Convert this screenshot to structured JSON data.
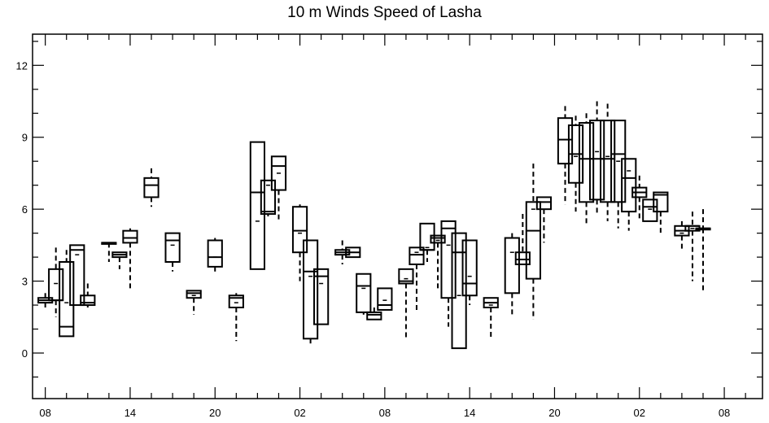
{
  "chart_data": {
    "type": "box",
    "title": "10 m Winds Speed of Lasha",
    "xlabel": "",
    "ylabel": "",
    "ylim": [
      -1.9,
      13.3
    ],
    "xlim": [
      -0.6,
      33.8
    ],
    "grid": false,
    "yticks": [
      0,
      3,
      6,
      9,
      12
    ],
    "xtick_positions": [
      0,
      4,
      8,
      12,
      16,
      20,
      24,
      28,
      32
    ],
    "xtick_labels": [
      "08",
      "14",
      "20",
      "02",
      "08",
      "14",
      "20",
      "02",
      "08"
    ],
    "boxes": [
      {
        "x": 0.0,
        "min": 1.9,
        "q1": 2.1,
        "median": 2.2,
        "q3": 2.3,
        "max": 2.5,
        "mean": 2.2
      },
      {
        "x": 0.5,
        "min": 1.5,
        "q1": 2.2,
        "median": 2.2,
        "q3": 3.5,
        "max": 4.4,
        "mean": 2.9
      },
      {
        "x": 1.0,
        "min": 0.7,
        "q1": 0.7,
        "median": 1.1,
        "q3": 3.8,
        "max": 4.3,
        "mean": 2.1
      },
      {
        "x": 1.5,
        "min": 2.0,
        "q1": 2.0,
        "median": 4.3,
        "q3": 4.5,
        "max": 4.5,
        "mean": 4.1
      },
      {
        "x": 2.0,
        "min": 1.9,
        "q1": 2.0,
        "median": 2.1,
        "q3": 2.4,
        "max": 2.9,
        "mean": 2.1
      },
      {
        "x": 3.0,
        "min": 3.8,
        "q1": 4.6,
        "median": 4.6,
        "q3": 4.6,
        "max": 4.6,
        "mean": 4.6
      },
      {
        "x": 3.5,
        "min": 3.5,
        "q1": 4.0,
        "median": 4.1,
        "q3": 4.2,
        "max": 4.2,
        "mean": 4.1
      },
      {
        "x": 4.0,
        "min": 2.7,
        "q1": 4.6,
        "median": 4.8,
        "q3": 5.1,
        "max": 5.2,
        "mean": 4.8
      },
      {
        "x": 5.0,
        "min": 6.1,
        "q1": 6.5,
        "median": 7.0,
        "q3": 7.3,
        "max": 7.7,
        "mean": 7.0
      },
      {
        "x": 6.0,
        "min": 3.4,
        "q1": 3.8,
        "median": 4.7,
        "q3": 5.0,
        "max": 5.0,
        "mean": 4.5
      },
      {
        "x": 7.0,
        "min": 1.6,
        "q1": 2.3,
        "median": 2.5,
        "q3": 2.6,
        "max": 2.6,
        "mean": 2.4
      },
      {
        "x": 8.0,
        "min": 3.4,
        "q1": 3.6,
        "median": 4.0,
        "q3": 4.7,
        "max": 4.8,
        "mean": 4.0
      },
      {
        "x": 9.0,
        "min": 0.5,
        "q1": 1.9,
        "median": 2.3,
        "q3": 2.4,
        "max": 2.5,
        "mean": 2.1
      },
      {
        "x": 10.0,
        "min": 3.5,
        "q1": 3.5,
        "median": 6.7,
        "q3": 8.8,
        "max": 8.8,
        "mean": 5.5
      },
      {
        "x": 10.5,
        "min": 5.7,
        "q1": 5.8,
        "median": 5.9,
        "q3": 7.2,
        "max": 7.2,
        "mean": 7.0
      },
      {
        "x": 11.0,
        "min": 5.5,
        "q1": 6.8,
        "median": 7.8,
        "q3": 8.2,
        "max": 8.2,
        "mean": 7.5
      },
      {
        "x": 12.0,
        "min": 3.0,
        "q1": 4.2,
        "median": 5.1,
        "q3": 6.1,
        "max": 6.2,
        "mean": 5.0
      },
      {
        "x": 12.5,
        "min": 0.4,
        "q1": 0.6,
        "median": 3.4,
        "q3": 4.7,
        "max": 4.7,
        "mean": 3.2
      },
      {
        "x": 13.0,
        "min": 1.2,
        "q1": 1.2,
        "median": 3.2,
        "q3": 3.5,
        "max": 3.5,
        "mean": 2.9
      },
      {
        "x": 14.0,
        "min": 3.7,
        "q1": 4.1,
        "median": 4.2,
        "q3": 4.3,
        "max": 4.7,
        "mean": 4.2
      },
      {
        "x": 14.5,
        "min": 4.0,
        "q1": 4.0,
        "median": 4.2,
        "q3": 4.4,
        "max": 4.4,
        "mean": 4.2
      },
      {
        "x": 15.0,
        "min": 1.6,
        "q1": 1.7,
        "median": 2.8,
        "q3": 3.3,
        "max": 3.3,
        "mean": 2.7
      },
      {
        "x": 15.5,
        "min": 1.4,
        "q1": 1.4,
        "median": 1.6,
        "q3": 1.7,
        "max": 1.9,
        "mean": 1.6
      },
      {
        "x": 16.0,
        "min": 1.8,
        "q1": 1.8,
        "median": 2.0,
        "q3": 2.7,
        "max": 2.7,
        "mean": 2.2
      },
      {
        "x": 17.0,
        "min": 0.6,
        "q1": 2.9,
        "median": 3.0,
        "q3": 3.5,
        "max": 3.5,
        "mean": 3.1
      },
      {
        "x": 17.5,
        "min": 1.7,
        "q1": 3.7,
        "median": 4.1,
        "q3": 4.4,
        "max": 4.4,
        "mean": 4.2
      },
      {
        "x": 18.0,
        "min": 3.8,
        "q1": 4.3,
        "median": 4.3,
        "q3": 5.4,
        "max": 5.4,
        "mean": 4.4
      },
      {
        "x": 18.5,
        "min": 2.6,
        "q1": 4.6,
        "median": 4.8,
        "q3": 4.9,
        "max": 4.9,
        "mean": 4.7
      },
      {
        "x": 19.0,
        "min": 1.1,
        "q1": 2.3,
        "median": 5.2,
        "q3": 5.5,
        "max": 5.5,
        "mean": 4.5
      },
      {
        "x": 19.5,
        "min": 0.2,
        "q1": 0.2,
        "median": 4.2,
        "q3": 5.0,
        "max": 5.0,
        "mean": 2.4
      },
      {
        "x": 20.0,
        "min": 2.0,
        "q1": 2.4,
        "median": 2.9,
        "q3": 4.7,
        "max": 4.7,
        "mean": 3.2
      },
      {
        "x": 21.0,
        "min": 0.6,
        "q1": 1.9,
        "median": 2.1,
        "q3": 2.3,
        "max": 2.3,
        "mean": 2.0
      },
      {
        "x": 22.0,
        "min": 1.6,
        "q1": 2.5,
        "median": 4.8,
        "q3": 4.8,
        "max": 5.0,
        "mean": 4.2
      },
      {
        "x": 22.5,
        "min": 3.7,
        "q1": 3.7,
        "median": 3.9,
        "q3": 4.2,
        "max": 5.8,
        "mean": 3.9
      },
      {
        "x": 23.0,
        "min": 1.4,
        "q1": 3.1,
        "median": 5.1,
        "q3": 6.3,
        "max": 7.9,
        "mean": 6.0
      },
      {
        "x": 23.5,
        "min": 4.6,
        "q1": 6.0,
        "median": 6.3,
        "q3": 6.5,
        "max": 6.5,
        "mean": 6.3
      },
      {
        "x": 24.5,
        "min": 6.2,
        "q1": 7.9,
        "median": 8.9,
        "q3": 9.8,
        "max": 10.3,
        "mean": 8.9
      },
      {
        "x": 25.0,
        "min": 5.9,
        "q1": 7.1,
        "median": 8.3,
        "q3": 9.5,
        "max": 9.9,
        "mean": 8.2
      },
      {
        "x": 25.5,
        "min": 5.3,
        "q1": 6.3,
        "median": 8.1,
        "q3": 9.6,
        "max": 10.0,
        "mean": 8.1
      },
      {
        "x": 26.0,
        "min": 5.8,
        "q1": 6.4,
        "median": 8.1,
        "q3": 9.7,
        "max": 10.5,
        "mean": 8.4
      },
      {
        "x": 26.5,
        "min": 5.5,
        "q1": 6.3,
        "median": 8.1,
        "q3": 9.7,
        "max": 10.4,
        "mean": 8.2
      },
      {
        "x": 27.0,
        "min": 5.2,
        "q1": 6.3,
        "median": 8.3,
        "q3": 9.7,
        "max": 9.7,
        "mean": 8.0
      },
      {
        "x": 27.5,
        "min": 5.1,
        "q1": 5.9,
        "median": 7.3,
        "q3": 8.1,
        "max": 8.1,
        "mean": 7.6
      },
      {
        "x": 28.0,
        "min": 5.5,
        "q1": 6.5,
        "median": 6.7,
        "q3": 6.9,
        "max": 7.4,
        "mean": 6.7
      },
      {
        "x": 28.5,
        "min": 5.5,
        "q1": 5.5,
        "median": 6.1,
        "q3": 6.4,
        "max": 6.4,
        "mean": 6.0
      },
      {
        "x": 29.0,
        "min": 4.9,
        "q1": 5.9,
        "median": 6.6,
        "q3": 6.7,
        "max": 6.7,
        "mean": 6.6
      },
      {
        "x": 30.0,
        "min": 4.3,
        "q1": 4.9,
        "median": 5.1,
        "q3": 5.3,
        "max": 5.5,
        "mean": 5.0
      },
      {
        "x": 30.5,
        "min": 3.0,
        "q1": 5.1,
        "median": 5.3,
        "q3": 5.3,
        "max": 5.9,
        "mean": 5.2
      },
      {
        "x": 31.0,
        "min": 2.6,
        "q1": 5.2,
        "median": 5.2,
        "q3": 5.2,
        "max": 6.0,
        "mean": 5.2
      }
    ]
  }
}
